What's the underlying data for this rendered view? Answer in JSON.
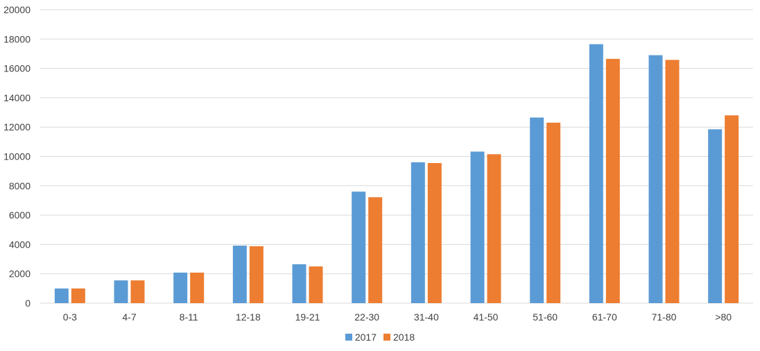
{
  "colors": {
    "s2017": "#5b9bd5",
    "s2018": "#ed7d31",
    "grid": "#d9d9d9",
    "axis_text": "#404040"
  },
  "chart_data": {
    "type": "bar",
    "categories": [
      "0-3",
      "4-7",
      "8-11",
      "12-18",
      "19-21",
      "22-30",
      "31-40",
      "41-50",
      "51-60",
      "61-70",
      "71-80",
      ">80"
    ],
    "series": [
      {
        "name": "2017",
        "values": [
          1000,
          1550,
          2080,
          3920,
          2650,
          7600,
          9600,
          10330,
          12650,
          17650,
          16900,
          11850
        ]
      },
      {
        "name": "2018",
        "values": [
          1000,
          1550,
          2080,
          3880,
          2500,
          7220,
          9550,
          10150,
          12300,
          16650,
          16580,
          12800
        ]
      }
    ],
    "ylim": [
      0,
      20000
    ],
    "yticks": [
      "0",
      "2000",
      "4000",
      "6000",
      "8000",
      "10000",
      "12000",
      "14000",
      "16000",
      "18000",
      "20000"
    ],
    "grid": true,
    "legend": "bottom-center",
    "title": "",
    "xlabel": "",
    "ylabel": ""
  }
}
